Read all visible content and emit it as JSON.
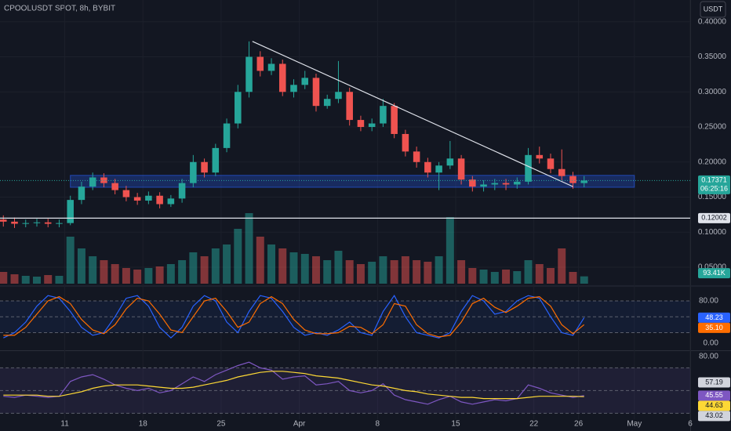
{
  "header": {
    "symbol": "CPOOLUSDT SPOT, 8h, BYBIT",
    "currency": "USDT"
  },
  "chart_data": [
    {
      "type": "candlestick",
      "x": [
        5.5,
        6.5,
        7.5,
        8.5,
        9.5,
        10.5,
        11.5,
        12.5,
        13.5,
        14.5,
        15.5,
        16.5,
        17.5,
        18.5,
        19.5,
        20.5,
        21.5,
        22.5,
        23.5,
        24.5,
        25.5,
        26.5,
        27.5,
        28.5,
        29.5,
        30.5,
        31.5,
        32.5,
        33.5,
        34.5,
        35.5,
        36.5,
        37.5,
        38.5,
        39.5,
        40.5,
        41.5,
        42.5,
        43.5,
        44.5,
        45.5,
        46.5,
        47.5,
        48.5,
        49.5,
        50.5,
        51.5,
        52.5,
        53.5,
        54.5,
        55.5,
        56.5,
        57.5
      ],
      "open": [
        0.118,
        0.115,
        0.112,
        0.113,
        0.114,
        0.112,
        0.113,
        0.146,
        0.165,
        0.178,
        0.17,
        0.16,
        0.15,
        0.145,
        0.152,
        0.14,
        0.148,
        0.17,
        0.2,
        0.185,
        0.22,
        0.255,
        0.3,
        0.35,
        0.33,
        0.34,
        0.3,
        0.31,
        0.32,
        0.28,
        0.29,
        0.3,
        0.26,
        0.25,
        0.255,
        0.28,
        0.24,
        0.215,
        0.2,
        0.185,
        0.195,
        0.205,
        0.175,
        0.165,
        0.168,
        0.17,
        0.168,
        0.172,
        0.21,
        0.205,
        0.19,
        0.18,
        0.17
      ],
      "high": [
        0.124,
        0.121,
        0.118,
        0.119,
        0.119,
        0.118,
        0.152,
        0.172,
        0.185,
        0.184,
        0.176,
        0.166,
        0.156,
        0.158,
        0.157,
        0.153,
        0.176,
        0.21,
        0.205,
        0.226,
        0.262,
        0.31,
        0.372,
        0.358,
        0.348,
        0.346,
        0.318,
        0.33,
        0.326,
        0.296,
        0.344,
        0.306,
        0.266,
        0.262,
        0.29,
        0.284,
        0.246,
        0.222,
        0.206,
        0.2,
        0.23,
        0.21,
        0.18,
        0.174,
        0.176,
        0.176,
        0.178,
        0.22,
        0.222,
        0.212,
        0.218,
        0.186,
        0.18
      ],
      "low": [
        0.108,
        0.106,
        0.107,
        0.108,
        0.107,
        0.107,
        0.11,
        0.14,
        0.16,
        0.164,
        0.154,
        0.144,
        0.139,
        0.14,
        0.134,
        0.136,
        0.142,
        0.164,
        0.178,
        0.18,
        0.214,
        0.248,
        0.292,
        0.322,
        0.324,
        0.294,
        0.292,
        0.304,
        0.272,
        0.276,
        0.284,
        0.252,
        0.244,
        0.244,
        0.25,
        0.234,
        0.208,
        0.192,
        0.178,
        0.16,
        0.19,
        0.168,
        0.158,
        0.158,
        0.16,
        0.16,
        0.162,
        0.168,
        0.198,
        0.184,
        0.174,
        0.162,
        0.164
      ],
      "close": [
        0.115,
        0.112,
        0.113,
        0.114,
        0.112,
        0.113,
        0.146,
        0.165,
        0.178,
        0.17,
        0.16,
        0.15,
        0.145,
        0.152,
        0.14,
        0.148,
        0.17,
        0.2,
        0.185,
        0.22,
        0.255,
        0.3,
        0.35,
        0.33,
        0.34,
        0.3,
        0.31,
        0.32,
        0.28,
        0.29,
        0.3,
        0.26,
        0.25,
        0.255,
        0.28,
        0.24,
        0.215,
        0.2,
        0.185,
        0.195,
        0.205,
        0.175,
        0.165,
        0.168,
        0.17,
        0.168,
        0.172,
        0.21,
        0.205,
        0.19,
        0.18,
        0.17,
        0.17371
      ],
      "up_color": "#26a69a",
      "down_color": "#ef5350",
      "xlim": [
        5.2,
        67
      ],
      "xticks": [
        11,
        18,
        25,
        {
          "value": 32,
          "label": "Apr"
        },
        {
          "value": 39,
          "label": "8"
        },
        {
          "value": 46,
          "label": "15"
        },
        {
          "value": 53,
          "label": "22"
        },
        {
          "value": 57,
          "label": "26"
        },
        {
          "value": 62,
          "label": "May"
        },
        {
          "value": 67,
          "label": "6"
        }
      ],
      "ylim": [
        0.0266,
        0.431
      ],
      "yticks": [
        {
          "value": 0.05,
          "label": "0.05000"
        },
        {
          "value": 0.1,
          "label": "0.10000"
        },
        {
          "value": 0.15,
          "label": "0.15000"
        },
        {
          "value": 0.2,
          "label": "0.20000"
        },
        {
          "value": 0.25,
          "label": "0.25000"
        },
        {
          "value": 0.3,
          "label": "0.30000"
        },
        {
          "value": 0.35,
          "label": "0.35000"
        },
        {
          "value": 0.4,
          "label": "0.40000"
        }
      ],
      "last_price": {
        "value": 0.17371,
        "label": "0.17371"
      },
      "countdown": "06:25:16",
      "level": {
        "value": 0.12002,
        "label": "0.12002"
      },
      "trendline": {
        "x": [
          27.8,
          56.5
        ],
        "y": [
          0.372,
          0.165
        ]
      },
      "zone": {
        "x": [
          11.5,
          62
        ],
        "y": [
          0.164,
          0.181
        ]
      }
    },
    {
      "type": "bar",
      "values": [
        150000,
        120000,
        100000,
        90000,
        110000,
        100000,
        600000,
        450000,
        350000,
        300000,
        250000,
        200000,
        180000,
        200000,
        220000,
        250000,
        300000,
        400000,
        350000,
        450000,
        500000,
        700000,
        900000,
        600000,
        500000,
        450000,
        400000,
        380000,
        350000,
        300000,
        420000,
        300000,
        250000,
        280000,
        350000,
        300000,
        350000,
        300000,
        280000,
        350000,
        850000,
        300000,
        200000,
        180000,
        150000,
        180000,
        160000,
        300000,
        250000,
        200000,
        450000,
        150000,
        93410
      ],
      "ylim": [
        0,
        1500000
      ],
      "last_label": {
        "value": 93410,
        "label": "93.41K"
      },
      "up_color": "#26a69a",
      "down_color": "#ef5350"
    },
    {
      "type": "line",
      "series": [
        {
          "color": "#2962ff",
          "values": [
            10,
            20,
            40,
            70,
            90,
            85,
            60,
            30,
            15,
            20,
            50,
            85,
            90,
            70,
            30,
            10,
            30,
            70,
            90,
            80,
            40,
            20,
            60,
            90,
            85,
            60,
            30,
            15,
            20,
            15,
            25,
            40,
            20,
            15,
            60,
            90,
            50,
            20,
            15,
            10,
            20,
            60,
            90,
            80,
            55,
            60,
            80,
            90,
            85,
            50,
            20,
            15,
            48.23
          ],
          "last_label": "48.23"
        },
        {
          "color": "#ff6d00",
          "values": [
            15,
            15,
            30,
            55,
            80,
            88,
            75,
            45,
            25,
            18,
            35,
            65,
            85,
            80,
            55,
            25,
            20,
            50,
            80,
            85,
            60,
            30,
            40,
            75,
            88,
            75,
            45,
            25,
            18,
            18,
            20,
            32,
            30,
            18,
            35,
            75,
            70,
            35,
            18,
            12,
            15,
            40,
            75,
            85,
            68,
            58,
            70,
            85,
            88,
            70,
            35,
            18,
            35.1
          ],
          "last_label": "35.10"
        }
      ],
      "ylim": [
        -10.4,
        103.7
      ],
      "yticks": [
        {
          "value": 0,
          "label": "0.00"
        },
        {
          "value": 80,
          "label": "80.00"
        }
      ],
      "hlines": [
        20,
        50,
        80
      ]
    },
    {
      "type": "line",
      "series": [
        {
          "color": "#7e57c2",
          "values": [
            45,
            44,
            46,
            45,
            44,
            45,
            58,
            62,
            64,
            60,
            55,
            52,
            50,
            52,
            48,
            50,
            56,
            62,
            58,
            64,
            68,
            72,
            75,
            70,
            68,
            60,
            62,
            63,
            55,
            56,
            58,
            50,
            48,
            50,
            56,
            46,
            42,
            40,
            38,
            42,
            45,
            40,
            38,
            40,
            42,
            41,
            43,
            55,
            52,
            48,
            46,
            44,
            45.55
          ],
          "last_label": "45.55"
        },
        {
          "color": "#fdd835",
          "values": [
            46,
            46,
            46,
            46,
            45,
            45,
            47,
            49,
            52,
            54,
            55,
            55,
            55,
            54,
            53,
            52,
            52,
            53,
            55,
            57,
            59,
            62,
            64,
            66,
            67,
            67,
            66,
            65,
            63,
            62,
            61,
            59,
            57,
            55,
            54,
            52,
            50,
            49,
            47,
            46,
            45,
            44,
            44,
            43,
            43,
            43,
            43,
            44,
            45,
            45,
            45,
            45,
            44.63
          ],
          "last_label": "44.63"
        }
      ],
      "bands": [
        {
          "value": 57.19,
          "label": "57.19"
        },
        {
          "value": 43.02,
          "label": "43.02"
        }
      ],
      "ylim": [
        15.8,
        83.4
      ],
      "yticks": [
        {
          "value": 80,
          "label": "80.00"
        }
      ],
      "hlines": [
        30,
        50,
        70
      ]
    }
  ]
}
